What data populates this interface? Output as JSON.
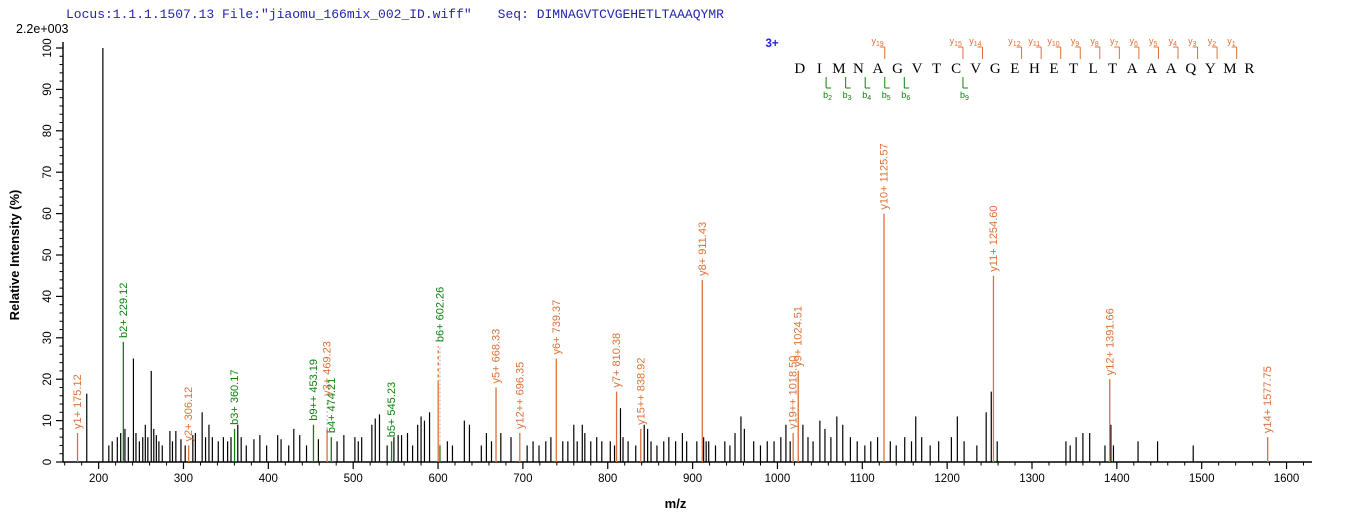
{
  "header": {
    "locus_file": "Locus:1.1.1.1507.13 File:\"jiaomu_166mix_002_ID.wiff\"",
    "seq_prefix": "Seq: ",
    "sequence": "DIMNAGVTCVGEHETLTAAAQYMR"
  },
  "scale_note": "2.2e+003",
  "colors": {
    "header_blue": "#2323b4",
    "y_ion_orange": "#dd7038",
    "b_ion_green": "#0e820e",
    "peak_black": "#000000",
    "leader_gray": "#b0b0b0",
    "charge_blue": "#2323d0"
  },
  "chart_data": {
    "type": "bar",
    "subtype": "mass-spectrum-stick-plot",
    "xlabel": "m/z",
    "ylabel": "Relative Intensity (%)",
    "xlim": [
      158,
      1630
    ],
    "ylim": [
      0,
      100
    ],
    "x_major_ticks": [
      200,
      300,
      400,
      500,
      600,
      700,
      800,
      900,
      1000,
      1100,
      1200,
      1300,
      1400,
      1500,
      1600
    ],
    "x_minor_step": 20,
    "y_major_ticks": [
      0,
      10,
      20,
      30,
      40,
      50,
      60,
      70,
      80,
      90,
      100
    ],
    "y_minor_step": 2,
    "precursor_charge": "3+",
    "peptide": {
      "sequence": "DIMNAGVTCVGEHETLTAAAQYMR",
      "y_ion_marks": [
        {
          "ion": "y",
          "sub": "19",
          "boundary_after": 5
        },
        {
          "ion": "y",
          "sub": "15",
          "boundary_after": 9
        },
        {
          "ion": "y",
          "sub": "14",
          "boundary_after": 10
        },
        {
          "ion": "y",
          "sub": "12",
          "boundary_after": 12
        },
        {
          "ion": "y",
          "sub": "11",
          "boundary_after": 13
        },
        {
          "ion": "y",
          "sub": "10",
          "boundary_after": 14
        },
        {
          "ion": "y",
          "sub": "9",
          "boundary_after": 15
        },
        {
          "ion": "y",
          "sub": "8",
          "boundary_after": 16
        },
        {
          "ion": "y",
          "sub": "7",
          "boundary_after": 17
        },
        {
          "ion": "y",
          "sub": "6",
          "boundary_after": 18
        },
        {
          "ion": "y",
          "sub": "5",
          "boundary_after": 19
        },
        {
          "ion": "y",
          "sub": "4",
          "boundary_after": 20
        },
        {
          "ion": "y",
          "sub": "3",
          "boundary_after": 21
        },
        {
          "ion": "y",
          "sub": "2",
          "boundary_after": 22
        },
        {
          "ion": "y",
          "sub": "1",
          "boundary_after": 23
        }
      ],
      "b_ion_marks": [
        {
          "ion": "b",
          "sub": "2",
          "boundary_after": 2
        },
        {
          "ion": "b",
          "sub": "3",
          "boundary_after": 3
        },
        {
          "ion": "b",
          "sub": "4",
          "boundary_after": 4
        },
        {
          "ion": "b",
          "sub": "5",
          "boundary_after": 5
        },
        {
          "ion": "b",
          "sub": "6",
          "boundary_after": 6
        },
        {
          "ion": "b",
          "sub": "9",
          "boundary_after": 9
        }
      ]
    },
    "labeled_peaks": [
      {
        "label": "y1+ 175.12",
        "mz": 175.12,
        "intensity": 7,
        "series": "y"
      },
      {
        "label": "b2+ 229.12",
        "mz": 229.12,
        "intensity": 29,
        "series": "b"
      },
      {
        "label": "y2+ 306.12",
        "mz": 306.12,
        "intensity": 4,
        "series": "y"
      },
      {
        "label": "b3+ 360.17",
        "mz": 360.17,
        "intensity": 8,
        "series": "b"
      },
      {
        "label": "b9++ 453.19",
        "mz": 453.19,
        "intensity": 9,
        "series": "b"
      },
      {
        "label": "y3+ 469.23",
        "mz": 469.23,
        "intensity": 8,
        "series": "y",
        "leader_to": 15,
        "leader_dashed": true
      },
      {
        "label": "b4+ 474.21",
        "mz": 474.21,
        "intensity": 6,
        "series": "b"
      },
      {
        "label": "b5+ 545.23",
        "mz": 545.23,
        "intensity": 5,
        "series": "b"
      },
      {
        "label": "",
        "mz": 600.2,
        "intensity": 19,
        "series": "y",
        "dash_above_to": 28
      },
      {
        "label": "b6+ 602.26",
        "mz": 602.26,
        "intensity": 4,
        "series": "b",
        "leader_to": 28,
        "leader_dashed": true
      },
      {
        "label": "y5+ 668.33",
        "mz": 668.33,
        "intensity": 18,
        "series": "y"
      },
      {
        "label": "y12++ 696.35",
        "mz": 696.35,
        "intensity": 7,
        "series": "y"
      },
      {
        "label": "y6+ 739.37",
        "mz": 739.37,
        "intensity": 25,
        "series": "y"
      },
      {
        "label": "y7+ 810.38",
        "mz": 810.38,
        "intensity": 17,
        "series": "y"
      },
      {
        "label": "y15++ 838.92",
        "mz": 838.92,
        "intensity": 8,
        "series": "y"
      },
      {
        "label": "y8+ 911.43",
        "mz": 911.43,
        "intensity": 44,
        "series": "y"
      },
      {
        "label": "y19++ 1018.50",
        "mz": 1018.5,
        "intensity": 7,
        "series": "y"
      },
      {
        "label": "y9+ 1024.51",
        "mz": 1024.51,
        "intensity": 22,
        "series": "y"
      },
      {
        "label": "y10+ 1125.57",
        "mz": 1125.57,
        "intensity": 60,
        "series": "y"
      },
      {
        "label": "y11+ 1254.60",
        "mz": 1254.6,
        "intensity": 45,
        "series": "y"
      },
      {
        "label": "y12+ 1391.66",
        "mz": 1391.66,
        "intensity": 20,
        "series": "y"
      },
      {
        "label": "y14+ 1577.75",
        "mz": 1577.75,
        "intensity": 6,
        "series": "y"
      }
    ],
    "unlabeled_peaks": [
      [
        186,
        16.5
      ],
      [
        205,
        100
      ],
      [
        212,
        4
      ],
      [
        216,
        5
      ],
      [
        222,
        6
      ],
      [
        226,
        7
      ],
      [
        231,
        8
      ],
      [
        235,
        6
      ],
      [
        241,
        25
      ],
      [
        244,
        7
      ],
      [
        248,
        5
      ],
      [
        252,
        6
      ],
      [
        255,
        9
      ],
      [
        258,
        6
      ],
      [
        262,
        22
      ],
      [
        265,
        8
      ],
      [
        268,
        6.5
      ],
      [
        271,
        5
      ],
      [
        275,
        4
      ],
      [
        284,
        7.5
      ],
      [
        287,
        5
      ],
      [
        291,
        7.5
      ],
      [
        297,
        5.5
      ],
      [
        302,
        4
      ],
      [
        311,
        6.5
      ],
      [
        314,
        7
      ],
      [
        322,
        12
      ],
      [
        326,
        6
      ],
      [
        330,
        9
      ],
      [
        334,
        6
      ],
      [
        341,
        5
      ],
      [
        347,
        6
      ],
      [
        352,
        5
      ],
      [
        356,
        6
      ],
      [
        364,
        9
      ],
      [
        368,
        6
      ],
      [
        374,
        4
      ],
      [
        383,
        5.5
      ],
      [
        390,
        6.5
      ],
      [
        398,
        4
      ],
      [
        411,
        6.5
      ],
      [
        415,
        5.5
      ],
      [
        424,
        4
      ],
      [
        430,
        8
      ],
      [
        437,
        6.5
      ],
      [
        445,
        4
      ],
      [
        459,
        5.5
      ],
      [
        481,
        5
      ],
      [
        489,
        6.5
      ],
      [
        502,
        6
      ],
      [
        506,
        5
      ],
      [
        510,
        6
      ],
      [
        522,
        9
      ],
      [
        526,
        10.5
      ],
      [
        531,
        11.5
      ],
      [
        540,
        4
      ],
      [
        548,
        6
      ],
      [
        553,
        6.5
      ],
      [
        557,
        6.5
      ],
      [
        564,
        7
      ],
      [
        570,
        4
      ],
      [
        576,
        9
      ],
      [
        580,
        11
      ],
      [
        584,
        10
      ],
      [
        590,
        12
      ],
      [
        611,
        5
      ],
      [
        617,
        4
      ],
      [
        631,
        10
      ],
      [
        637,
        9
      ],
      [
        651,
        4
      ],
      [
        657,
        7
      ],
      [
        663,
        5
      ],
      [
        674,
        7
      ],
      [
        686,
        6
      ],
      [
        705,
        4
      ],
      [
        712,
        5
      ],
      [
        719,
        4
      ],
      [
        727,
        5
      ],
      [
        733,
        6
      ],
      [
        747,
        5
      ],
      [
        753,
        5
      ],
      [
        760,
        9
      ],
      [
        764,
        5
      ],
      [
        770,
        9
      ],
      [
        773,
        7
      ],
      [
        780,
        5
      ],
      [
        787,
        6
      ],
      [
        793,
        5
      ],
      [
        803,
        5
      ],
      [
        808,
        4
      ],
      [
        815,
        13
      ],
      [
        818,
        6
      ],
      [
        824,
        5
      ],
      [
        833,
        4
      ],
      [
        843,
        9
      ],
      [
        847,
        8
      ],
      [
        851,
        5
      ],
      [
        858,
        4
      ],
      [
        866,
        5
      ],
      [
        872,
        6
      ],
      [
        880,
        5
      ],
      [
        888,
        7
      ],
      [
        893,
        5
      ],
      [
        905,
        5
      ],
      [
        913,
        6
      ],
      [
        916,
        5
      ],
      [
        919,
        5
      ],
      [
        927,
        4
      ],
      [
        938,
        5
      ],
      [
        944,
        4
      ],
      [
        950,
        7
      ],
      [
        957,
        11
      ],
      [
        961,
        8
      ],
      [
        972,
        5
      ],
      [
        980,
        4
      ],
      [
        988,
        5
      ],
      [
        996,
        5
      ],
      [
        1004,
        6
      ],
      [
        1010,
        9
      ],
      [
        1015,
        5
      ],
      [
        1030,
        9
      ],
      [
        1036,
        6
      ],
      [
        1042,
        5
      ],
      [
        1050,
        10
      ],
      [
        1056,
        8
      ],
      [
        1063,
        6
      ],
      [
        1070,
        11
      ],
      [
        1077,
        9
      ],
      [
        1086,
        6
      ],
      [
        1094,
        5
      ],
      [
        1103,
        4
      ],
      [
        1110,
        5
      ],
      [
        1118,
        6
      ],
      [
        1133,
        5
      ],
      [
        1140,
        4
      ],
      [
        1150,
        6
      ],
      [
        1158,
        5
      ],
      [
        1163,
        11
      ],
      [
        1170,
        6
      ],
      [
        1180,
        4
      ],
      [
        1190,
        5
      ],
      [
        1205,
        6
      ],
      [
        1212,
        11
      ],
      [
        1220,
        5
      ],
      [
        1235,
        4
      ],
      [
        1246,
        12
      ],
      [
        1252,
        17
      ],
      [
        1259,
        5
      ],
      [
        1340,
        5
      ],
      [
        1345,
        4
      ],
      [
        1352,
        6
      ],
      [
        1360,
        7
      ],
      [
        1368,
        7
      ],
      [
        1386,
        4
      ],
      [
        1393,
        9
      ],
      [
        1396,
        4
      ],
      [
        1425,
        5
      ],
      [
        1448,
        5
      ],
      [
        1490,
        4
      ]
    ]
  }
}
